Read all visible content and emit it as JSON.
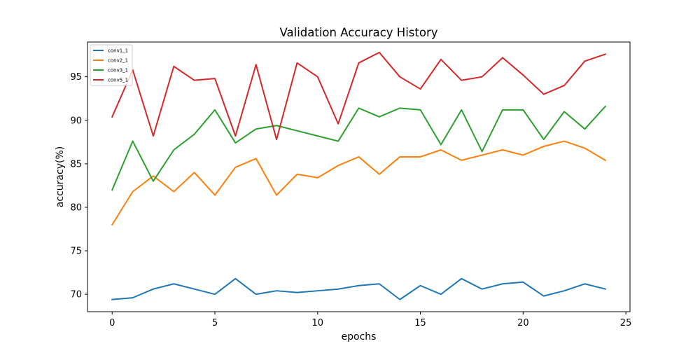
{
  "chart_data": {
    "type": "line",
    "title": "Validation Accuracy History",
    "xlabel": "epochs",
    "ylabel": "accuracy(%)",
    "xlim": [
      -1.2,
      25.2
    ],
    "ylim": [
      68.0,
      99.0
    ],
    "xticks": [
      0,
      5,
      10,
      15,
      20,
      25
    ],
    "yticks": [
      70,
      75,
      80,
      85,
      90,
      95
    ],
    "grid": false,
    "legend_position": "top-left",
    "x": [
      0,
      1,
      2,
      3,
      4,
      5,
      6,
      7,
      8,
      9,
      10,
      11,
      12,
      13,
      14,
      15,
      16,
      17,
      18,
      19,
      20,
      21,
      22,
      23,
      24
    ],
    "series": [
      {
        "name": "conv1_1",
        "color": "#1f77b4",
        "values": [
          69.4,
          69.6,
          70.6,
          71.2,
          70.6,
          70.0,
          71.8,
          70.0,
          70.4,
          70.2,
          70.4,
          70.6,
          71.0,
          71.2,
          69.4,
          71.0,
          70.0,
          71.8,
          70.6,
          71.2,
          71.4,
          69.8,
          70.4,
          71.2,
          70.6
        ]
      },
      {
        "name": "conv2_1",
        "color": "#ff7f0e",
        "values": [
          78.0,
          81.8,
          83.6,
          81.8,
          84.0,
          81.4,
          84.6,
          85.6,
          81.4,
          83.8,
          83.4,
          84.8,
          85.8,
          83.8,
          85.8,
          85.8,
          86.6,
          85.4,
          86.0,
          86.6,
          86.0,
          87.0,
          87.6,
          86.8,
          85.4
        ]
      },
      {
        "name": "conv3_1",
        "color": "#2ca02c",
        "values": [
          82.0,
          87.6,
          83.0,
          86.6,
          88.4,
          91.2,
          87.4,
          89.0,
          89.4,
          88.8,
          88.2,
          87.6,
          91.4,
          90.4,
          91.4,
          91.2,
          87.2,
          91.2,
          86.4,
          91.2,
          91.2,
          87.8,
          91.0,
          89.0,
          91.6
        ]
      },
      {
        "name": "conv5_1",
        "color": "#d62728",
        "values": [
          90.4,
          95.8,
          88.2,
          96.2,
          94.6,
          94.8,
          88.2,
          96.4,
          87.8,
          96.6,
          95.0,
          89.6,
          96.6,
          97.8,
          95.0,
          93.6,
          97.0,
          94.6,
          95.0,
          97.2,
          95.2,
          93.0,
          94.0,
          96.8,
          97.6
        ]
      }
    ]
  }
}
